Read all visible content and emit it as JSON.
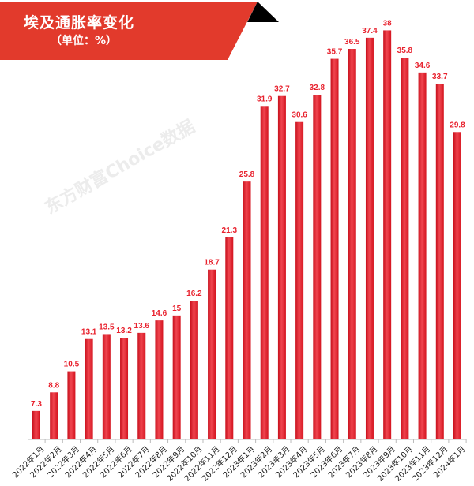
{
  "header": {
    "title": "埃及通胀率变化",
    "subtitle": "（单位：%）",
    "colors": {
      "banner": "#e23a2c",
      "corner": "#000000"
    }
  },
  "watermark": "东方财富Choice数据",
  "chart_data": {
    "type": "bar",
    "title": "埃及通胀率变化",
    "unit": "%",
    "categories": [
      "2022年1月",
      "2022年2月",
      "2022年3月",
      "2022年4月",
      "2022年5月",
      "2022年6月",
      "2022年7月",
      "2022年8月",
      "2022年9月",
      "2022年10月",
      "2022年11月",
      "2022年12月",
      "2023年1月",
      "2023年2月",
      "2023年3月",
      "2023年4月",
      "2023年5月",
      "2023年6月",
      "2023年7月",
      "2023年8月",
      "2023年9月",
      "2023年10月",
      "2023年11月",
      "2023年12月",
      "2024年1月"
    ],
    "values": [
      7.3,
      8.8,
      10.5,
      13.1,
      13.5,
      13.2,
      13.6,
      14.6,
      15,
      16.2,
      18.7,
      21.3,
      25.8,
      31.9,
      32.7,
      30.6,
      32.8,
      35.7,
      36.5,
      37.4,
      38,
      35.8,
      34.6,
      33.7,
      29.8
    ],
    "ylim": [
      5,
      40
    ],
    "grid": false,
    "data_labels": true,
    "bar_color": "#e8222e",
    "label_color": "#e8222e"
  }
}
